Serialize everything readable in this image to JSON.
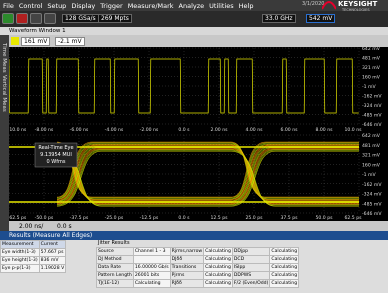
{
  "menu": [
    "File",
    "Control",
    "Setup",
    "Display",
    "Trigger",
    "Measure/Mark",
    "Analyze",
    "Utilities",
    "Help"
  ],
  "clock": {
    "date": "3/1/2020"
  },
  "brand": {
    "name": "KEYSIGHT",
    "sub": "TECHNOLOGIES"
  },
  "toolbar": {
    "sample_rate": "128 GSa/s",
    "memory": "269 Mpts",
    "bandwidth": "33.0 GHz",
    "trigger_level": "542 mV"
  },
  "window_title": "Waveform Window 1",
  "side_tabs": [
    "Time Meas",
    "Vertical Meas"
  ],
  "channel": {
    "scale": "161 mV",
    "offset": "-2.1 mV"
  },
  "waveform": {
    "y_labels": [
      "642 mV",
      "481 mV",
      "321 mV",
      "160 mV",
      "-1 mV",
      "-162 mV",
      "-324 mV",
      "-485 mV",
      "-646 mV"
    ],
    "x_labels": [
      "-10.0 ns",
      "-8.00 ns",
      "-6.00 ns",
      "-4.00 ns",
      "-2.00 ns",
      "0.0 s",
      "2.00 ns",
      "4.00 ns",
      "6.00 ns",
      "8.00 ns",
      "10.0 ns"
    ]
  },
  "eye": {
    "box": [
      "Real-Time Eye",
      "9.13954 MUI",
      "0 Wfms"
    ],
    "y_labels": [
      "642 mV",
      "481 mV",
      "321 mV",
      "160 mV",
      "-1 mV",
      "-162 mV",
      "-324 mV",
      "-485 mV",
      "-646 mV"
    ],
    "x_labels": [
      "-62.5 ps",
      "-50.0 ps",
      "-37.5 ps",
      "-25.0 ps",
      "-12.5 ps",
      "0.0 s",
      "12.5 ps",
      "25.0 ps",
      "37.5 ps",
      "50.0 ps",
      "62.5 ps"
    ]
  },
  "timebase": {
    "scale": "2.00 ns/",
    "position": "0.0 s"
  },
  "results": {
    "title": "Results (Measure All Edges)",
    "columns": [
      "Measurement",
      "Current"
    ],
    "rows": [
      [
        "Eye width(1-3)",
        "57.667 ps"
      ],
      [
        "Eye height(1-3)",
        "836 mV"
      ],
      [
        "Eye p-p(1-3)",
        "1.19028 V"
      ]
    ]
  },
  "jitter": {
    "title": "Jitter Results",
    "rows": [
      [
        "Source",
        "Channel 1 - 3",
        "Rjrms,narrow",
        "Calculating",
        "DDjpp",
        "Calculating"
      ],
      [
        "DJ Method",
        "",
        "DJδδ",
        "Calculating",
        "DCD",
        "Calculating"
      ],
      [
        "Data Rate",
        "16.00000 Gb/s",
        "Transitions",
        "Calculating",
        "ISIpp",
        "Calculating"
      ],
      [
        "Pattern Length",
        "26001 bits",
        "Pjrms",
        "Calculating",
        "DDPWS",
        "Calculating"
      ],
      [
        "TJ(1E-12)",
        "Calculating",
        "RJδδ",
        "Calculating",
        "F/2 (Even/Odd)",
        "Calculating"
      ]
    ]
  }
}
